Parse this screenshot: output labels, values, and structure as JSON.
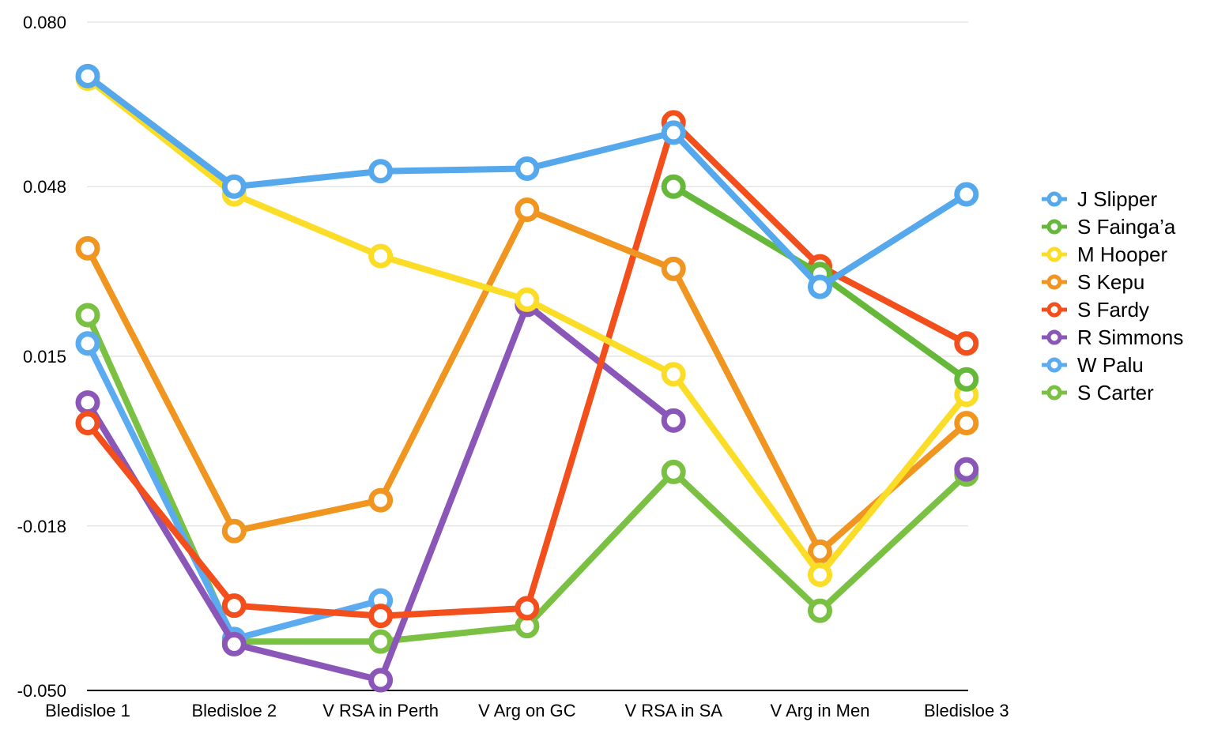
{
  "chart_data": {
    "type": "line",
    "title": "",
    "xlabel": "",
    "ylabel": "",
    "categories": [
      "Bledisloe 1",
      "Bledisloe 2",
      "V RSA in Perth",
      "V Arg on GC",
      "V RSA in SA",
      "V Arg in Men",
      "Bledisloe 3"
    ],
    "ylim": [
      -0.05,
      0.08
    ],
    "yticks": [
      {
        "value": 0.08,
        "label": "0.080"
      },
      {
        "value": 0.048,
        "label": "0.048"
      },
      {
        "value": 0.015,
        "label": "0.015"
      },
      {
        "value": -0.018,
        "label": "-0.018"
      },
      {
        "value": -0.05,
        "label": "-0.050"
      }
    ],
    "grid": true,
    "legend_position": "right",
    "series": [
      {
        "name": "S Carter",
        "color": "#7ac143",
        "values": [
          0.023,
          -0.0405,
          -0.0405,
          -0.0375,
          -0.0075,
          -0.0345,
          -0.008
        ]
      },
      {
        "name": "W Palu",
        "color": "#5aabf0",
        "values": [
          0.0175,
          -0.04,
          -0.0325,
          null,
          null,
          null,
          null
        ]
      },
      {
        "name": "R Simmons",
        "color": "#8a56b8",
        "values": [
          0.006,
          -0.041,
          -0.048,
          0.025,
          0.0025,
          null,
          -0.007
        ]
      },
      {
        "name": "S Fardy",
        "color": "#f24f1c",
        "values": [
          0.002,
          -0.0335,
          -0.0355,
          -0.034,
          0.0605,
          0.0325,
          0.0175
        ]
      },
      {
        "name": "S Kepu",
        "color": "#ef9520",
        "values": [
          0.036,
          -0.019,
          -0.013,
          0.0435,
          0.032,
          -0.023,
          0.002
        ]
      },
      {
        "name": "M Hooper",
        "color": "#fbdd27",
        "values": [
          0.069,
          0.0465,
          0.0345,
          0.026,
          0.0115,
          -0.0275,
          0.0075
        ]
      },
      {
        "name": "S Fainga’a",
        "color": "#65b83a",
        "values": [
          null,
          null,
          null,
          null,
          0.048,
          0.031,
          0.0105
        ]
      },
      {
        "name": "J Slipper",
        "color": "#55a8ec",
        "values": [
          0.0695,
          0.048,
          0.051,
          0.0515,
          0.0585,
          0.0285,
          0.0465
        ]
      }
    ],
    "legend": [
      {
        "name": "J Slipper",
        "color": "#55a8ec"
      },
      {
        "name": "S Fainga’a",
        "color": "#65b83a"
      },
      {
        "name": "M Hooper",
        "color": "#fbdd27"
      },
      {
        "name": "S Kepu",
        "color": "#ef9520"
      },
      {
        "name": "S Fardy",
        "color": "#f24f1c"
      },
      {
        "name": "R Simmons",
        "color": "#8a56b8"
      },
      {
        "name": "W Palu",
        "color": "#5aabf0"
      },
      {
        "name": "S Carter",
        "color": "#7ac143"
      }
    ]
  }
}
